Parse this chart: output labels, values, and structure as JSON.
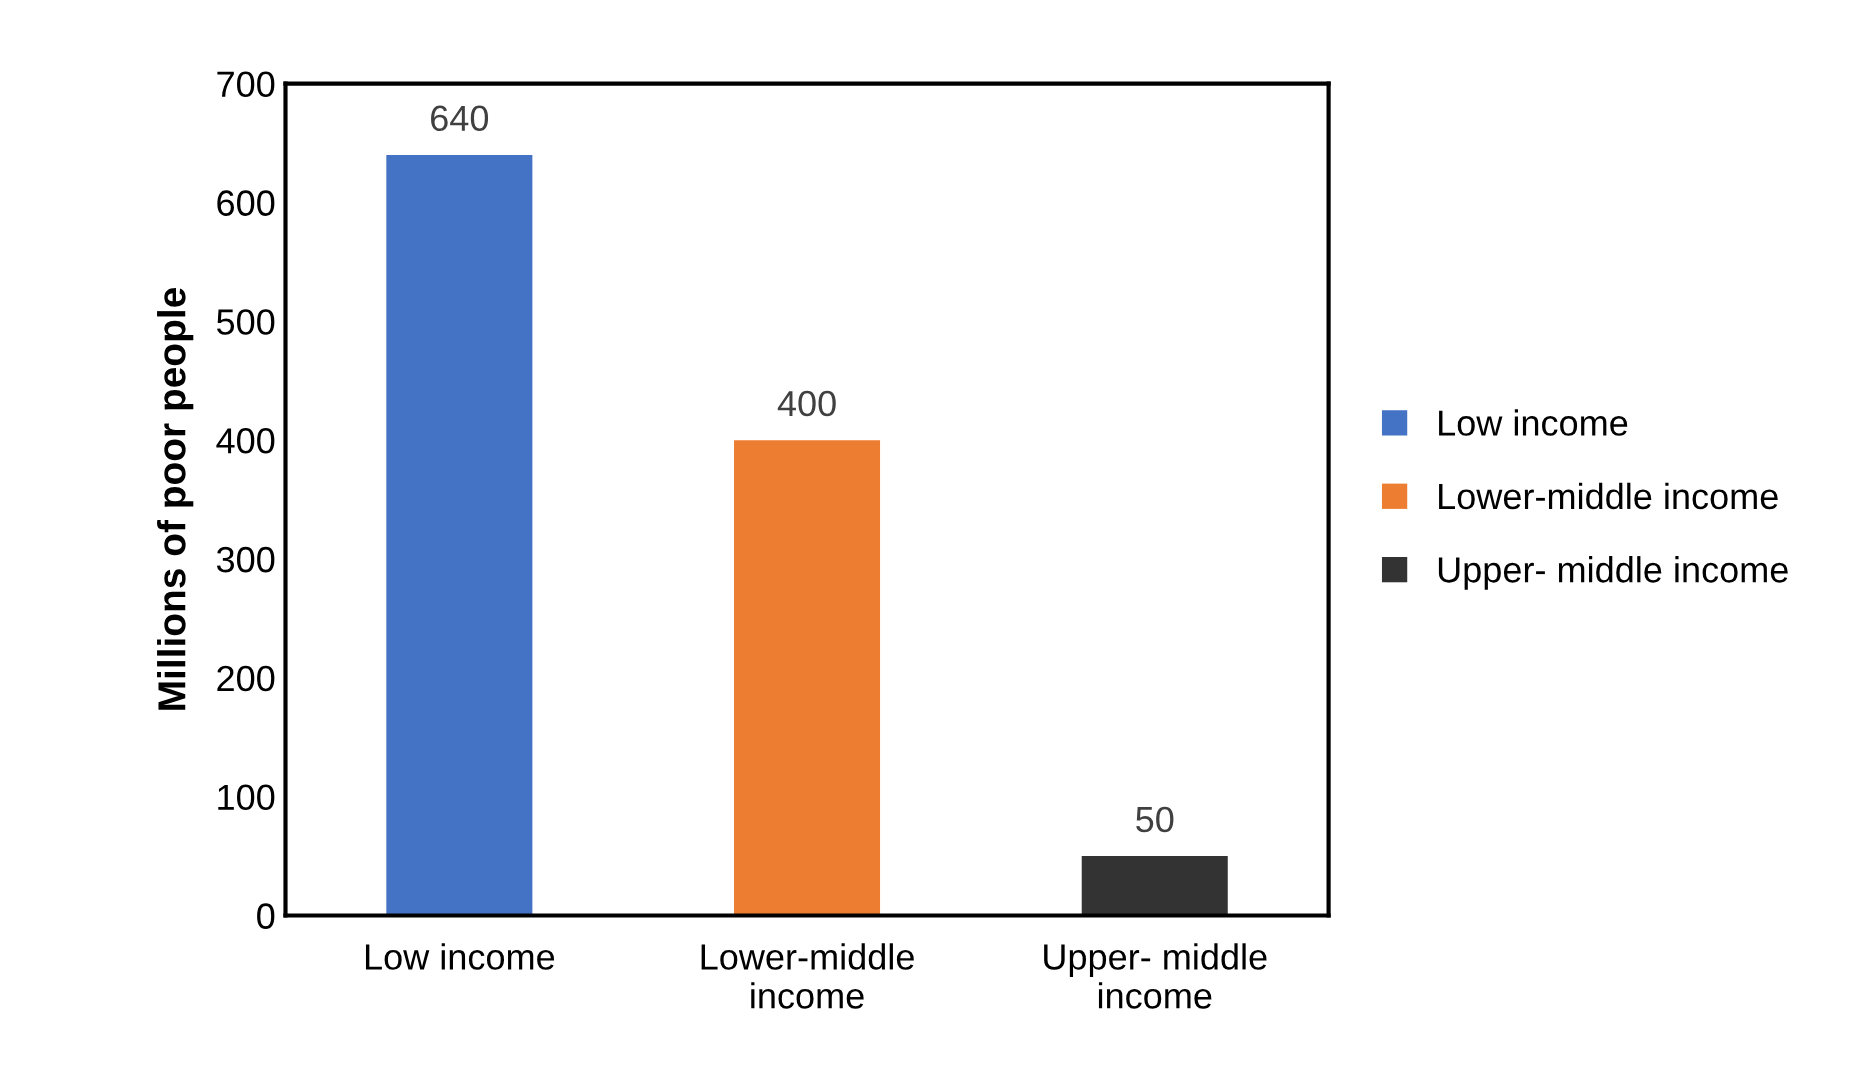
{
  "chart_data": {
    "type": "bar",
    "ylabel": "Millions of poor people",
    "categories": [
      "Low income",
      "Lower-middle\nincome",
      "Upper- middle\nincome"
    ],
    "series": [
      {
        "name": "Low income",
        "color": "#4472c4",
        "values": [
          640,
          null,
          null
        ]
      },
      {
        "name": "Lower-middle income",
        "color": "#ed7d31",
        "values": [
          null,
          400,
          null
        ]
      },
      {
        "name": "Upper- middle income",
        "color": "#333333",
        "values": [
          null,
          null,
          50
        ]
      }
    ],
    "ylim": [
      0,
      700
    ],
    "yticks": [
      0,
      100,
      200,
      300,
      400,
      500,
      600,
      700
    ],
    "grid": false,
    "legend": "right",
    "data_labels": true
  }
}
